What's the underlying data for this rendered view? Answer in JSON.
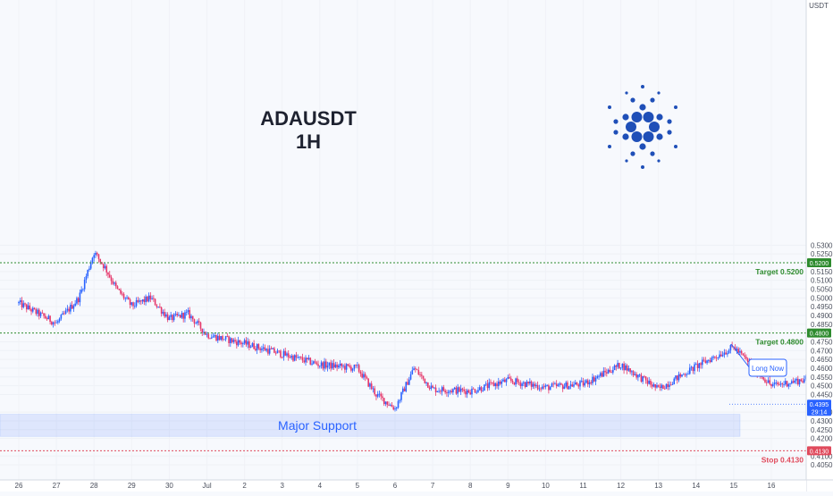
{
  "chart_data": {
    "type": "candlestick",
    "symbol_title": "ADAUSDT",
    "timeframe": "1H",
    "currency": "USDT",
    "x_ticks": [
      "26",
      "27",
      "28",
      "29",
      "30",
      "Jul",
      "2",
      "3",
      "4",
      "5",
      "6",
      "7",
      "8",
      "9",
      "10",
      "11",
      "12",
      "13",
      "14",
      "15",
      "16"
    ],
    "y_ticks": [
      "0.5300",
      "0.5250",
      "0.5150",
      "0.5100",
      "0.5050",
      "0.5000",
      "0.4950",
      "0.4900",
      "0.4850",
      "0.4750",
      "0.4700",
      "0.4650",
      "0.4600",
      "0.4550",
      "0.4500",
      "0.4450",
      "0.4350",
      "0.4300",
      "0.4250",
      "0.4200",
      "0.4100",
      "0.4050"
    ],
    "ylim": [
      0.4025,
      0.535
    ],
    "current_price": {
      "value": 0.4395,
      "label": "0.4395",
      "countdown": "29:14"
    },
    "levels": [
      {
        "value": 0.52,
        "axis_label": "0.5200",
        "label": "Target 0.5200",
        "color": "#2e8b2e"
      },
      {
        "value": 0.48,
        "axis_label": "0.4800",
        "label": "Target 0.4800",
        "color": "#2e8b2e"
      },
      {
        "value": 0.413,
        "axis_label": "0.4130",
        "label": "Stop 0.4130",
        "color": "#e04a5c"
      }
    ],
    "support_zone": {
      "label": "Major Support",
      "y_from": 0.4212,
      "y_to": 0.4337,
      "color": "#2962ff"
    },
    "callout": {
      "label": "Long Now"
    },
    "path_points": [
      [
        0,
        0.497
      ],
      [
        1,
        0.4855
      ],
      [
        1.6,
        0.5
      ],
      [
        2,
        0.526
      ],
      [
        2.3,
        0.517
      ],
      [
        2.6,
        0.505
      ],
      [
        3,
        0.4955
      ],
      [
        3.5,
        0.5
      ],
      [
        4,
        0.488
      ],
      [
        4.5,
        0.491
      ],
      [
        5,
        0.479
      ],
      [
        6,
        0.474
      ],
      [
        7,
        0.468
      ],
      [
        8,
        0.462
      ],
      [
        9,
        0.46
      ],
      [
        9.5,
        0.445
      ],
      [
        10,
        0.437
      ],
      [
        10.5,
        0.46
      ],
      [
        11,
        0.448
      ],
      [
        12,
        0.447
      ],
      [
        13,
        0.453
      ],
      [
        14,
        0.449
      ],
      [
        15,
        0.451
      ],
      [
        16,
        0.462
      ],
      [
        17,
        0.448
      ],
      [
        18,
        0.461
      ],
      [
        19,
        0.472
      ],
      [
        20,
        0.45
      ],
      [
        21,
        0.454
      ],
      [
        22,
        0.453
      ],
      [
        23,
        0.458
      ],
      [
        24,
        0.467
      ],
      [
        25,
        0.468
      ],
      [
        25.6,
        0.488
      ],
      [
        26,
        0.48
      ],
      [
        27,
        0.466
      ],
      [
        28,
        0.469
      ],
      [
        28.5,
        0.48
      ],
      [
        29,
        0.485
      ],
      [
        29.5,
        0.478
      ],
      [
        30,
        0.473
      ],
      [
        31,
        0.467
      ],
      [
        32,
        0.456
      ],
      [
        33,
        0.451
      ],
      [
        34,
        0.443
      ],
      [
        34.5,
        0.432
      ],
      [
        35,
        0.431
      ],
      [
        35.5,
        0.426
      ],
      [
        36,
        0.418
      ],
      [
        36.3,
        0.425
      ],
      [
        36.6,
        0.407
      ],
      [
        37,
        0.423
      ],
      [
        37.5,
        0.434
      ],
      [
        38,
        0.429
      ],
      [
        38.5,
        0.419
      ],
      [
        39,
        0.43
      ],
      [
        39.3,
        0.4395
      ]
    ]
  }
}
